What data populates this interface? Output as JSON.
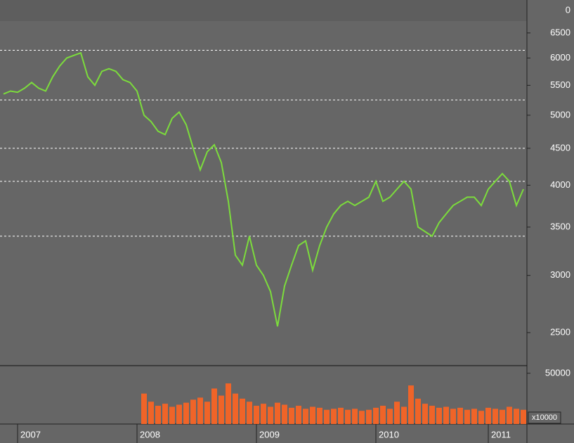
{
  "chart_data": [
    {
      "type": "line",
      "categories": [
        null,
        null,
        "2007",
        null,
        null,
        null,
        null,
        null,
        null,
        null,
        null,
        null,
        null,
        null,
        null,
        null,
        null,
        null,
        null,
        "2008",
        null,
        null,
        null,
        null,
        null,
        null,
        null,
        null,
        null,
        null,
        null,
        null,
        null,
        null,
        null,
        null,
        "2009",
        null,
        null,
        null,
        null,
        null,
        null,
        null,
        null,
        null,
        null,
        null,
        null,
        null,
        null,
        null,
        null,
        "2010",
        null,
        null,
        null,
        null,
        null,
        null,
        null,
        null,
        null,
        null,
        null,
        null,
        null,
        null,
        null,
        "2011",
        null,
        null,
        null,
        null,
        null
      ],
      "series": [
        {
          "color": "#7cdc3c",
          "values": [
            5350,
            5400,
            5380,
            5450,
            5550,
            5450,
            5400,
            5650,
            5850,
            6000,
            6050,
            6100,
            5650,
            5500,
            5750,
            5800,
            5750,
            5600,
            5550,
            5400,
            5000,
            4900,
            4750,
            4700,
            4950,
            5050,
            4850,
            4500,
            4200,
            4450,
            4550,
            4300,
            3800,
            3200,
            3100,
            3400,
            3100,
            3000,
            2850,
            2550,
            2900,
            3100,
            3300,
            3350,
            3050,
            3300,
            3500,
            3650,
            3750,
            3800,
            3750,
            3800,
            3850,
            4050,
            3800,
            3850,
            3950,
            4050,
            3950,
            3500,
            3450,
            3400,
            3550,
            3650,
            3750,
            3800,
            3850,
            3850,
            3750,
            3950,
            4050,
            4150,
            4050,
            3750,
            3950
          ]
        }
      ],
      "log_scale": true,
      "ylim": [
        2250,
        6750
      ],
      "yticks": [
        2500,
        3000,
        3500,
        4000,
        4500,
        5000,
        5500,
        6000,
        6500
      ],
      "reference_lines": [
        6150,
        5250,
        4500,
        4050,
        3400
      ],
      "signal_ticks": [
        0
      ]
    },
    {
      "type": "bar",
      "color": "#f06428",
      "values": [
        null,
        null,
        null,
        null,
        null,
        null,
        null,
        null,
        null,
        null,
        null,
        null,
        null,
        null,
        null,
        null,
        null,
        null,
        null,
        null,
        30000,
        22000,
        18000,
        20000,
        17000,
        19000,
        21000,
        24000,
        26000,
        22000,
        35000,
        28000,
        40000,
        30000,
        25000,
        22000,
        18000,
        20000,
        17000,
        21000,
        19000,
        16000,
        18000,
        15000,
        17000,
        16000,
        14000,
        15000,
        16000,
        14000,
        15000,
        13000,
        14000,
        16000,
        18000,
        15000,
        22000,
        17000,
        38000,
        25000,
        20000,
        18000,
        16000,
        17000,
        15000,
        16000,
        14000,
        15000,
        13000,
        16000,
        15000,
        14000,
        17000,
        15000,
        14000
      ],
      "ylim": [
        0,
        57500
      ],
      "yticks": [
        50000
      ],
      "unit_label": "x10000"
    }
  ]
}
